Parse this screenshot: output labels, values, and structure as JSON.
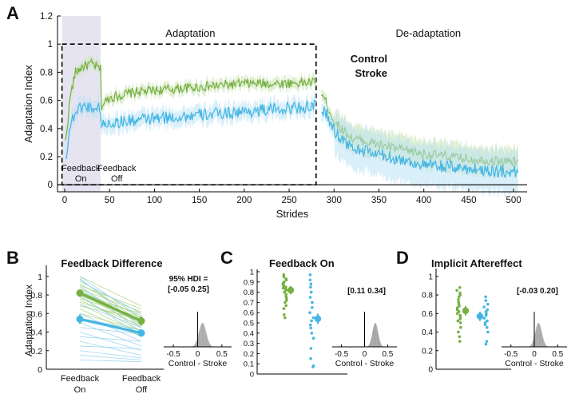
{
  "chart_data": [
    {
      "id": "A",
      "type": "line",
      "panel_label": "A",
      "xlabel": "Strides",
      "ylabel": "Adaptation Index",
      "xlim": [
        -8,
        515
      ],
      "ylim": [
        -0.05,
        1.2
      ],
      "xticks": [
        0,
        50,
        100,
        150,
        200,
        250,
        300,
        350,
        400,
        450,
        500
      ],
      "yticks": [
        0,
        0.2,
        0.4,
        0.6,
        0.8,
        1.0,
        1.2
      ],
      "ytick_labels": [
        "0",
        "0.2",
        "0.4",
        "0.6",
        "0.8",
        "1",
        "1.2"
      ],
      "annotations": {
        "adaptation": "Adaptation",
        "deadaptation": "De-adaptation",
        "feedback_on": [
          "Feedback",
          "On"
        ],
        "feedback_off": [
          "Feedback",
          "Off"
        ]
      },
      "feedback_on_range": [
        -3,
        40
      ],
      "adaptation_box": [
        -3,
        280,
        0,
        1.0
      ],
      "series": [
        {
          "name": "Control",
          "color": "#76b041",
          "band_color": "#c8e2ae",
          "anchors": [
            [
              1,
              0.3
            ],
            [
              6,
              0.62
            ],
            [
              12,
              0.8
            ],
            [
              20,
              0.84
            ],
            [
              30,
              0.86
            ],
            [
              40,
              0.82
            ],
            [
              41,
              0.56
            ],
            [
              50,
              0.62
            ],
            [
              80,
              0.66
            ],
            [
              120,
              0.68
            ],
            [
              160,
              0.7
            ],
            [
              200,
              0.72
            ],
            [
              240,
              0.72
            ],
            [
              280,
              0.73
            ],
            [
              290,
              0.6
            ],
            [
              300,
              0.45
            ],
            [
              320,
              0.33
            ],
            [
              360,
              0.27
            ],
            [
              400,
              0.22
            ],
            [
              440,
              0.19
            ],
            [
              480,
              0.17
            ],
            [
              505,
              0.16
            ]
          ],
          "noise": 0.035,
          "band": 0.04
        },
        {
          "name": "Stroke",
          "color": "#44b6e4",
          "band_color": "#b9e2f4",
          "anchors": [
            [
              1,
              0.18
            ],
            [
              6,
              0.42
            ],
            [
              12,
              0.52
            ],
            [
              20,
              0.56
            ],
            [
              30,
              0.55
            ],
            [
              40,
              0.54
            ],
            [
              41,
              0.42
            ],
            [
              50,
              0.44
            ],
            [
              80,
              0.46
            ],
            [
              120,
              0.48
            ],
            [
              160,
              0.5
            ],
            [
              200,
              0.52
            ],
            [
              240,
              0.54
            ],
            [
              280,
              0.56
            ],
            [
              290,
              0.52
            ],
            [
              300,
              0.38
            ],
            [
              320,
              0.26
            ],
            [
              360,
              0.2
            ],
            [
              400,
              0.14
            ],
            [
              440,
              0.12
            ],
            [
              480,
              0.1
            ],
            [
              505,
              0.09
            ]
          ],
          "noise": 0.045,
          "band": 0.06
        }
      ]
    },
    {
      "id": "B",
      "type": "line",
      "panel_label": "B",
      "title": "Feedback Difference",
      "ylabel": "Adaptation Index",
      "categories": [
        [
          "Feedback",
          "On"
        ],
        [
          "Feedback",
          "Off"
        ]
      ],
      "ylim": [
        0,
        1.05
      ],
      "yticks": [
        0,
        0.2,
        0.4,
        0.6,
        0.8,
        1.0
      ],
      "ytick_labels": [
        "0",
        "0.2",
        "0.4",
        "0.6",
        "0.8",
        "1"
      ],
      "series": [
        {
          "name": "Control",
          "color": "#76b041",
          "light": "#a8d27e",
          "mean": [
            0.82,
            0.52
          ],
          "err": [
            0.04,
            0.05
          ],
          "subjects": [
            [
              0.95,
              0.6
            ],
            [
              0.92,
              0.55
            ],
            [
              0.9,
              0.65
            ],
            [
              0.88,
              0.48
            ],
            [
              0.86,
              0.62
            ],
            [
              0.85,
              0.52
            ],
            [
              0.83,
              0.58
            ],
            [
              0.82,
              0.45
            ],
            [
              0.8,
              0.5
            ],
            [
              0.79,
              0.6
            ],
            [
              0.78,
              0.4
            ],
            [
              0.76,
              0.56
            ],
            [
              0.74,
              0.47
            ],
            [
              0.72,
              0.52
            ],
            [
              0.7,
              0.38
            ],
            [
              0.68,
              0.55
            ],
            [
              0.65,
              0.35
            ],
            [
              0.6,
              0.42
            ],
            [
              1.0,
              0.68
            ],
            [
              0.97,
              0.5
            ]
          ]
        },
        {
          "name": "Stroke",
          "color": "#44b6e4",
          "light": "#8fd0ee",
          "mean": [
            0.54,
            0.39
          ],
          "err": [
            0.05,
            0.04
          ],
          "subjects": [
            [
              1.0,
              0.55
            ],
            [
              0.98,
              0.45
            ],
            [
              0.95,
              0.6
            ],
            [
              0.9,
              0.4
            ],
            [
              0.85,
              0.5
            ],
            [
              0.8,
              0.35
            ],
            [
              0.7,
              0.45
            ],
            [
              0.6,
              0.3
            ],
            [
              0.55,
              0.42
            ],
            [
              0.5,
              0.25
            ],
            [
              0.45,
              0.38
            ],
            [
              0.4,
              0.2
            ],
            [
              0.35,
              0.3
            ],
            [
              0.3,
              0.15
            ],
            [
              0.25,
              0.22
            ],
            [
              0.2,
              0.12
            ],
            [
              0.15,
              0.1
            ],
            [
              0.1,
              0.08
            ]
          ]
        }
      ],
      "hdi_label": [
        "95% HDI =",
        "[-0.05 0.25]"
      ],
      "hist": {
        "xlabel": "Control - Stroke",
        "xlim": [
          -0.7,
          0.7
        ],
        "xticks": [
          -0.5,
          0,
          0.5
        ],
        "xtick_labels": [
          "-0.5",
          "0",
          "0.5"
        ],
        "center": 0.1,
        "sd": 0.075,
        "color": "#a6a6a6"
      }
    },
    {
      "id": "C",
      "type": "scatter",
      "panel_label": "C",
      "title": "Feedback On",
      "ylim": [
        0,
        1.0
      ],
      "yticks": [
        0,
        0.1,
        0.2,
        0.3,
        0.4,
        0.5,
        0.6,
        0.7,
        0.8,
        0.9,
        1.0
      ],
      "ytick_labels": [
        "0",
        "0.1",
        "0.2",
        "0.3",
        "0.4",
        "0.5",
        "0.6",
        "0.7",
        "0.8",
        "0.9",
        "1"
      ],
      "series": [
        {
          "name": "Control",
          "color": "#76b041",
          "mean": 0.82,
          "err": 0.04,
          "values": [
            0.97,
            0.95,
            0.93,
            0.92,
            0.9,
            0.89,
            0.88,
            0.87,
            0.86,
            0.85,
            0.84,
            0.83,
            0.82,
            0.8,
            0.78,
            0.76,
            0.74,
            0.72,
            0.7,
            0.67,
            0.64,
            0.58,
            0.55
          ]
        },
        {
          "name": "Stroke",
          "color": "#44b6e4",
          "mean": 0.54,
          "err": 0.05,
          "values": [
            0.97,
            0.92,
            0.88,
            0.85,
            0.8,
            0.75,
            0.7,
            0.65,
            0.6,
            0.55,
            0.52,
            0.48,
            0.45,
            0.4,
            0.35,
            0.25,
            0.15,
            0.08,
            0.07
          ]
        }
      ],
      "hdi_label": [
        "[0.11 0.34]"
      ],
      "hist": {
        "xlabel": "Control - Stroke",
        "xlim": [
          -0.7,
          0.7
        ],
        "xticks": [
          -0.5,
          0,
          0.5
        ],
        "xtick_labels": [
          "-0.5",
          "0",
          "0.5"
        ],
        "center": 0.23,
        "sd": 0.06,
        "color": "#a6a6a6"
      }
    },
    {
      "id": "D",
      "type": "scatter",
      "panel_label": "D",
      "title": "Implicit Aftereffect",
      "ylim": [
        0,
        1.05
      ],
      "yticks": [
        0,
        0.2,
        0.4,
        0.6,
        0.8,
        1.0
      ],
      "ytick_labels": [
        "0",
        "0.2",
        "0.4",
        "0.6",
        "0.8",
        "1"
      ],
      "series": [
        {
          "name": "Control",
          "color": "#76b041",
          "mean": 0.63,
          "err": 0.05,
          "values": [
            0.88,
            0.85,
            0.82,
            0.8,
            0.78,
            0.75,
            0.72,
            0.7,
            0.68,
            0.66,
            0.64,
            0.62,
            0.6,
            0.58,
            0.56,
            0.54,
            0.52,
            0.5,
            0.45,
            0.4,
            0.35,
            0.3
          ]
        },
        {
          "name": "Stroke",
          "color": "#44b6e4",
          "mean": 0.57,
          "err": 0.05,
          "values": [
            0.78,
            0.74,
            0.7,
            0.67,
            0.64,
            0.62,
            0.6,
            0.58,
            0.55,
            0.52,
            0.5,
            0.48,
            0.45,
            0.4,
            0.3,
            0.27
          ]
        }
      ],
      "hdi_label": [
        "[-0.03 0.20]"
      ],
      "hist": {
        "xlabel": "Control - Stroke",
        "xlim": [
          -0.7,
          0.7
        ],
        "xticks": [
          -0.5,
          0,
          0.5
        ],
        "xtick_labels": [
          "-0.5",
          "0",
          "0.5"
        ],
        "center": 0.09,
        "sd": 0.07,
        "color": "#a6a6a6"
      }
    }
  ]
}
